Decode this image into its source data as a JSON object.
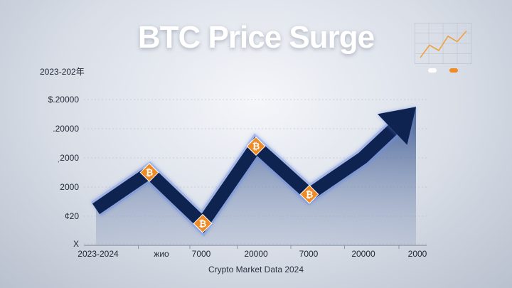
{
  "chart_data": {
    "type": "line",
    "title": "BTC Price Surge",
    "subtitle": "2023-202年",
    "xlabel": "Crypto Market Data 2024",
    "ylabel": "",
    "x_ticks": [
      "2023-2024",
      "жиo",
      "7000",
      "20000",
      "7000",
      "20000",
      "2000"
    ],
    "y_ticks": [
      "$.20000",
      ".20000",
      "ˌ2000",
      "2000",
      "¢20",
      "X"
    ],
    "ylim": [
      0,
      100
    ],
    "series": [
      {
        "name": "",
        "x": [
          0,
          1,
          2,
          3,
          4,
          5,
          6
        ],
        "values": [
          25,
          50,
          15,
          68,
          35,
          60,
          95
        ]
      }
    ],
    "markers": [
      {
        "x": 1,
        "value": 50,
        "label": "₿"
      },
      {
        "x": 2,
        "value": 15,
        "label": "₿"
      },
      {
        "x": 3,
        "value": 68,
        "label": "₿"
      },
      {
        "x": 4,
        "value": 35,
        "label": "₿"
      }
    ],
    "grid": true,
    "legend": "top-right",
    "inset": {
      "type": "line",
      "values": [
        10,
        45,
        30,
        70,
        55,
        85
      ]
    }
  },
  "colors": {
    "accent": "#f08a24",
    "line_dark": "#0e2350",
    "line_glow": "#6f8fe0",
    "area": "#2b4a86"
  }
}
